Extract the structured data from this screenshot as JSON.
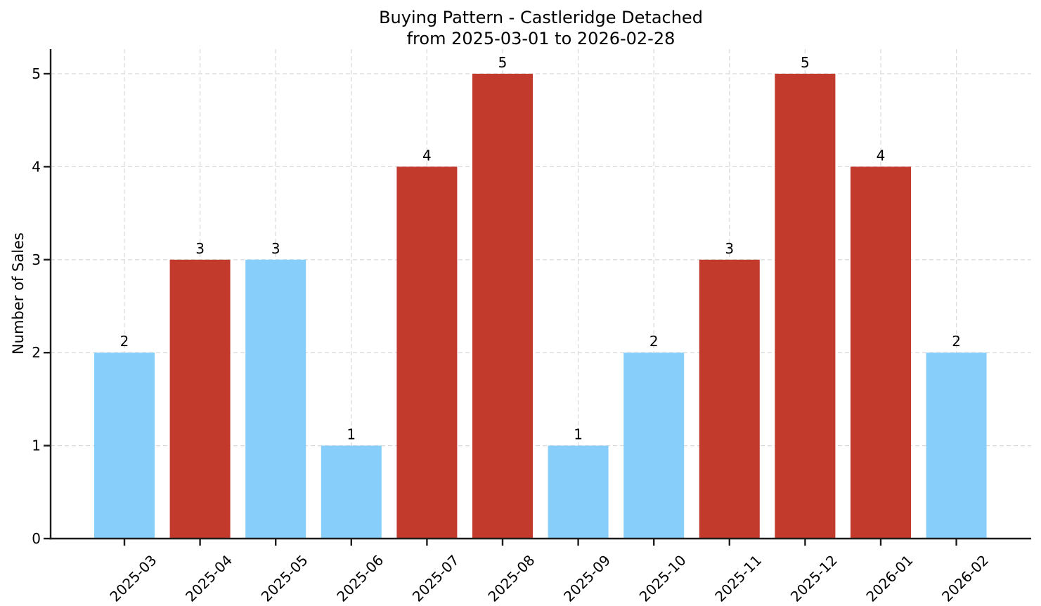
{
  "page": {
    "background": "#ffffff"
  },
  "chart_data": {
    "type": "bar",
    "title": "Buying Pattern - Castleridge Detached",
    "subtitle": "from 2025-03-01 to 2026-02-28",
    "xlabel": "",
    "ylabel": "Number of Sales",
    "categories": [
      "2025-03",
      "2025-04",
      "2025-05",
      "2025-06",
      "2025-07",
      "2025-08",
      "2025-09",
      "2025-10",
      "2025-11",
      "2025-12",
      "2026-01",
      "2026-02"
    ],
    "values": [
      2,
      3,
      3,
      1,
      4,
      5,
      1,
      2,
      3,
      5,
      4,
      2
    ],
    "bar_color_keys": [
      "blue",
      "red",
      "blue",
      "blue",
      "red",
      "red",
      "blue",
      "blue",
      "red",
      "red",
      "red",
      "blue"
    ],
    "palette": {
      "blue": "#87CEFA",
      "red": "#C23A2B"
    },
    "value_labels_shown": true,
    "yticks": [
      0,
      1,
      2,
      3,
      4,
      5
    ],
    "ylim": [
      0,
      5.27
    ],
    "x_tick_rotation_deg": 45,
    "grid": {
      "visible": true,
      "style": "dashed",
      "color": "#dbdbdb"
    },
    "axis_color": "#1c1c1c",
    "text_color": "#000000",
    "legend": "none"
  }
}
